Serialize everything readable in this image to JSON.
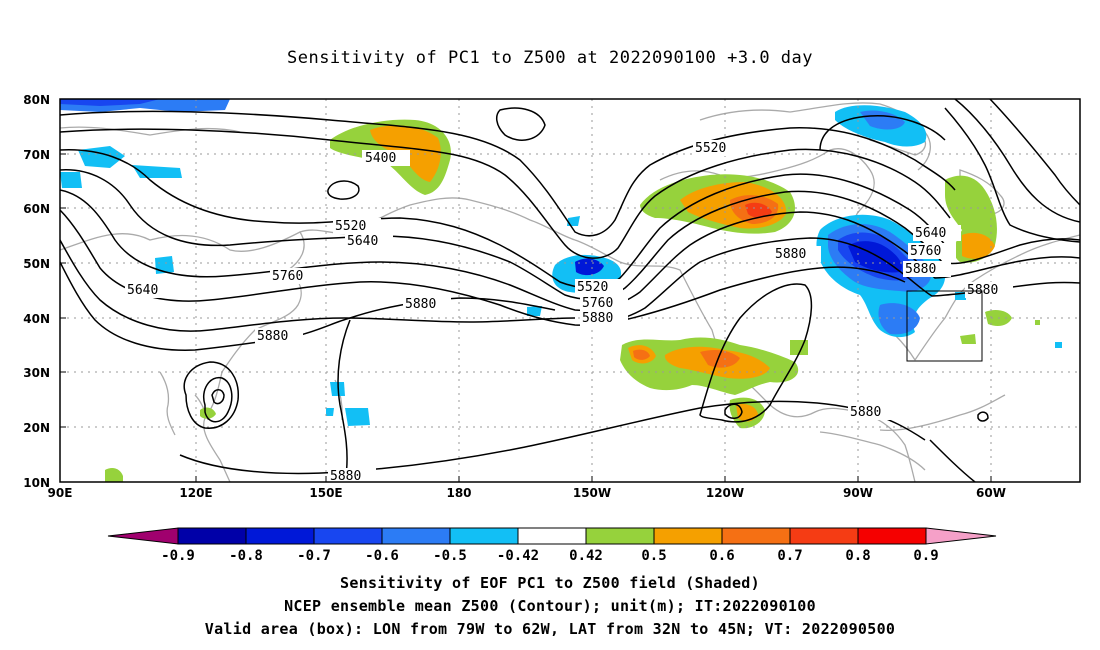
{
  "title": "Sensitivity of PC1 to Z500 at 2022090100 +3.0 day",
  "axes": {
    "lat_labels": [
      "80N",
      "70N",
      "60N",
      "50N",
      "40N",
      "30N",
      "20N",
      "10N"
    ],
    "lon_labels": [
      "90E",
      "120E",
      "150E",
      "180",
      "150W",
      "120W",
      "90W",
      "60W"
    ]
  },
  "contour_labels": [
    "5400",
    "5520",
    "5520",
    "5520",
    "5640",
    "5640",
    "5640",
    "5760",
    "5760",
    "5760",
    "5880",
    "5880",
    "5880",
    "5880",
    "5880",
    "5880"
  ],
  "colorbar": {
    "labels": [
      "-0.9",
      "-0.8",
      "-0.7",
      "-0.6",
      "-0.5",
      "-0.42",
      "0.42",
      "0.5",
      "0.6",
      "0.7",
      "0.8",
      "0.9"
    ],
    "colors": [
      "#a0006e",
      "#0000a8",
      "#0018d8",
      "#1846f0",
      "#2c7cf5",
      "#12bff5",
      "#ffffff",
      "#96d23c",
      "#f5a000",
      "#f57014",
      "#f53c14",
      "#f50000",
      "#f5a0c8"
    ]
  },
  "footer": [
    "Sensitivity of EOF PC1 to Z500 field (Shaded)",
    "NCEP ensemble mean Z500 (Contour); unit(m); IT:2022090100",
    "Valid area (box): LON from 79W to 62W, LAT from 32N to 45N; VT: 2022090500"
  ]
}
